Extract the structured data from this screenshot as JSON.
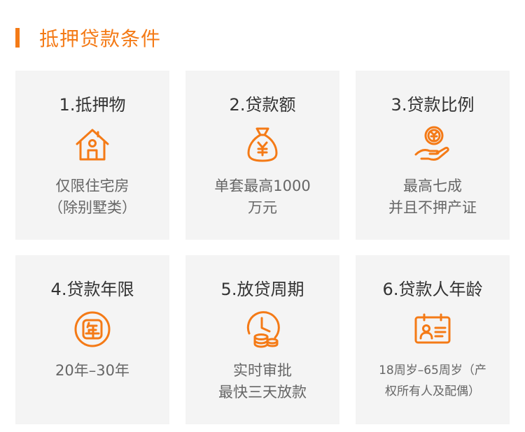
{
  "section": {
    "title": "抵押贷款条件"
  },
  "colors": {
    "accent": "#f47a16",
    "card_bg": "#f4f4f4",
    "title_text": "#333333",
    "desc_text": "#666666"
  },
  "cards": [
    {
      "title": "1.抵押物",
      "icon": "house-icon",
      "desc": [
        "仅限住宅房",
        "（除别墅类）"
      ]
    },
    {
      "title": "2.贷款额",
      "icon": "money-bag-icon",
      "desc": [
        "单套最高1000",
        "万元"
      ]
    },
    {
      "title": "3.贷款比例",
      "icon": "hand-coin-icon",
      "desc": [
        "最高七成",
        "并且不押产证"
      ]
    },
    {
      "title": "4.贷款年限",
      "icon": "year-stamp-icon",
      "desc": [
        "20年–30年"
      ]
    },
    {
      "title": "5.放贷周期",
      "icon": "clock-coins-icon",
      "desc": [
        "实时审批",
        "最快三天放款"
      ]
    },
    {
      "title": "6.贷款人年龄",
      "icon": "id-card-icon",
      "desc": [
        "18周岁–65周岁（产",
        "权所有人及配偶）"
      ]
    }
  ]
}
